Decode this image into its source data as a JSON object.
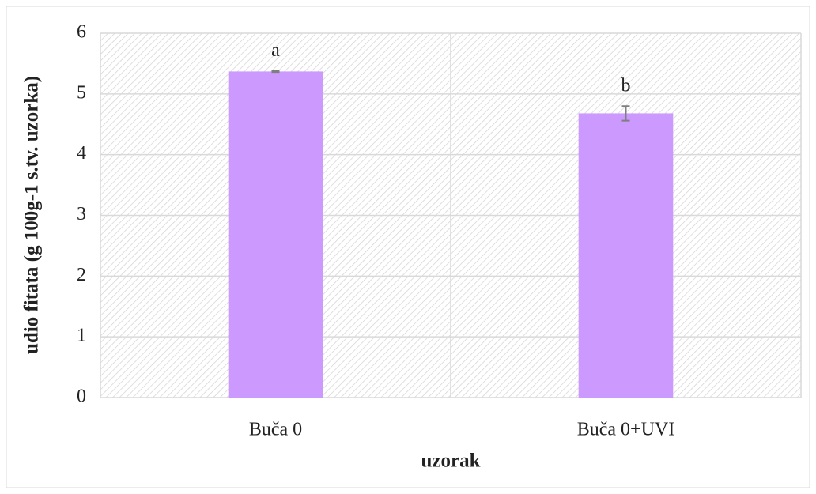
{
  "chart_data": {
    "type": "bar",
    "ylabel": "udio fitata (g 100g-1 s.tv. uzorka)",
    "xlabel": "uzorak",
    "categories": [
      "Buča 0",
      "Buča 0+UVI"
    ],
    "values": [
      5.37,
      4.68
    ],
    "errors": [
      0.01,
      0.12
    ],
    "letters": [
      "a",
      "b"
    ],
    "color": "#cc99ff",
    "ylim": [
      0,
      6
    ],
    "yticks": [
      0,
      1,
      2,
      3,
      4,
      5,
      6
    ],
    "grid": true
  }
}
